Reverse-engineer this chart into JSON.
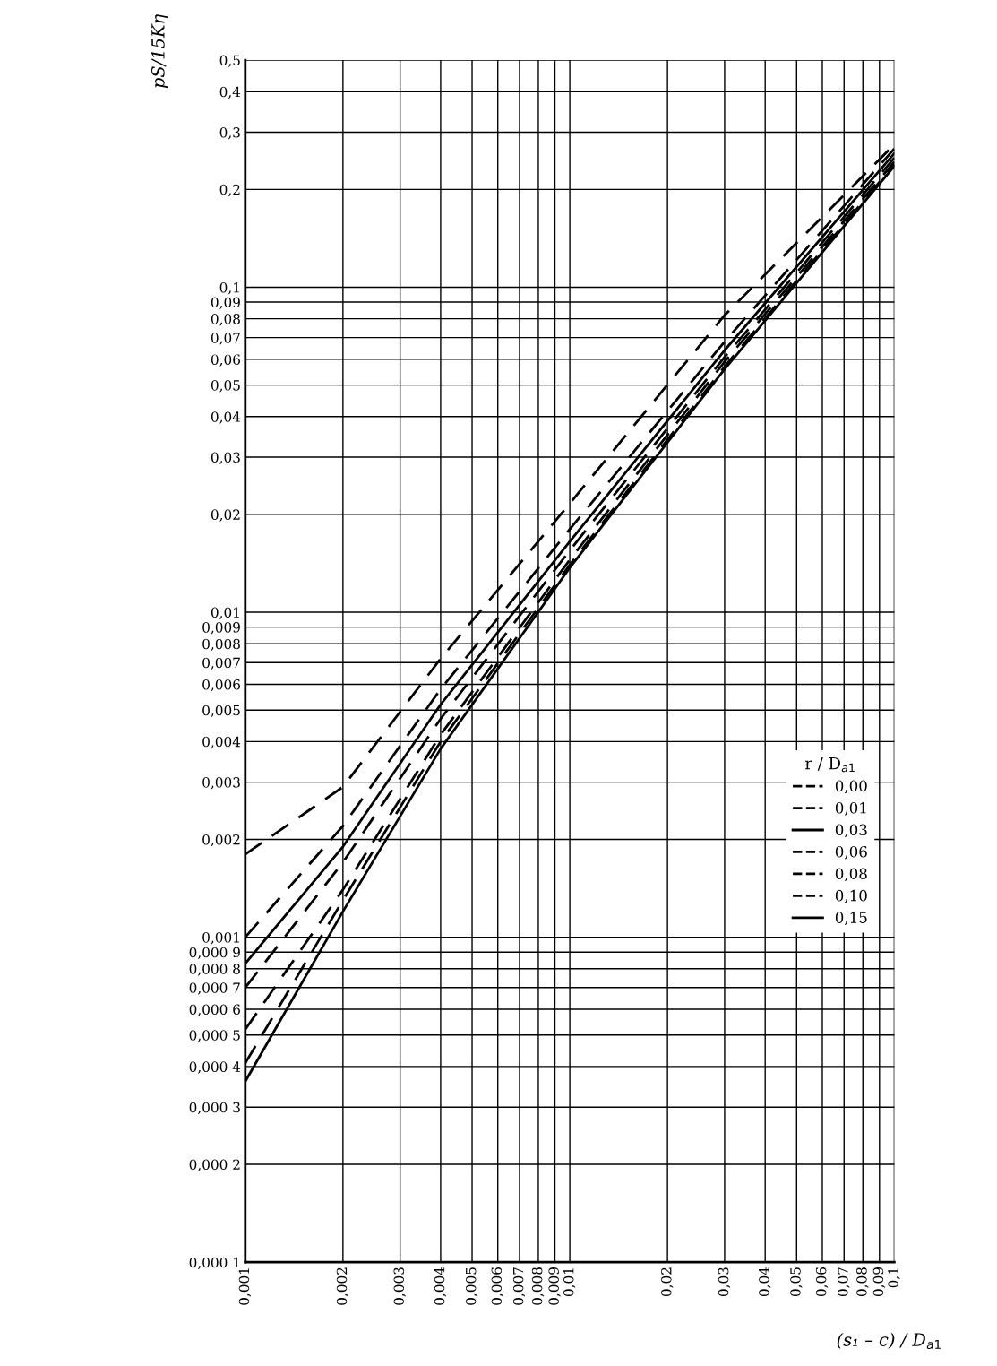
{
  "chart_data": {
    "type": "line",
    "xlabel": "(s₁ – c) / D$_{a1}$",
    "ylabel": "pS/15Kη",
    "legend_title": "r / D$_{a1}$",
    "log": "xy",
    "grid": true,
    "legend": "right",
    "marker": "none",
    "x": [
      0.001,
      0.002,
      0.004,
      0.01,
      0.03,
      0.1
    ],
    "series": [
      {
        "name": "0,00",
        "color": "#000000",
        "line_style": "dashed",
        "values": [
          0.0018,
          0.0029,
          0.0072,
          0.0216,
          0.082,
          0.275
        ]
      },
      {
        "name": "0,01",
        "color": "#000000",
        "line_style": "dashed",
        "values": [
          0.001,
          0.0022,
          0.0058,
          0.018,
          0.068,
          0.267
        ]
      },
      {
        "name": "0,03",
        "color": "#000000",
        "line_style": "solid",
        "values": [
          0.00083,
          0.0019,
          0.0052,
          0.0165,
          0.064,
          0.258
        ]
      },
      {
        "name": "0,06",
        "color": "#000000",
        "line_style": "dashed",
        "values": [
          0.0007,
          0.0017,
          0.0047,
          0.0155,
          0.061,
          0.25
        ]
      },
      {
        "name": "0,08",
        "color": "#000000",
        "line_style": "dashed",
        "values": [
          0.00052,
          0.0014,
          0.0042,
          0.0145,
          0.059,
          0.243
        ]
      },
      {
        "name": "0,10",
        "color": "#000000",
        "line_style": "dashed",
        "values": [
          0.00041,
          0.0013,
          0.004,
          0.014,
          0.057,
          0.239
        ]
      },
      {
        "name": "0,15",
        "color": "#000000",
        "line_style": "solid",
        "values": [
          0.00036,
          0.0012,
          0.0038,
          0.0137,
          0.056,
          0.236
        ]
      }
    ],
    "xlim": [
      0.001,
      0.1
    ],
    "xticks": [
      {
        "value": 0.001,
        "label": "0,001"
      },
      {
        "value": 0.002,
        "label": "0,002"
      },
      {
        "value": 0.003,
        "label": "0,003"
      },
      {
        "value": 0.004,
        "label": "0,004"
      },
      {
        "value": 0.005,
        "label": "0,005"
      },
      {
        "value": 0.006,
        "label": "0,006"
      },
      {
        "value": 0.007,
        "label": "0,007"
      },
      {
        "value": 0.008,
        "label": "0,008"
      },
      {
        "value": 0.009,
        "label": "0,009"
      },
      {
        "value": 0.01,
        "label": "0,01"
      },
      {
        "value": 0.02,
        "label": "0,02"
      },
      {
        "value": 0.03,
        "label": "0,03"
      },
      {
        "value": 0.04,
        "label": "0,04"
      },
      {
        "value": 0.05,
        "label": "0,05"
      },
      {
        "value": 0.06,
        "label": "0,06"
      },
      {
        "value": 0.07,
        "label": "0,07"
      },
      {
        "value": 0.08,
        "label": "0,08"
      },
      {
        "value": 0.09,
        "label": "0,09"
      },
      {
        "value": 0.1,
        "label": "0,1"
      }
    ],
    "ylim": [
      0.0001,
      0.5
    ],
    "yticks": [
      {
        "value": 0.0001,
        "label": "0,000 1"
      },
      {
        "value": 0.0002,
        "label": "0,000 2"
      },
      {
        "value": 0.0003,
        "label": "0,000 3"
      },
      {
        "value": 0.0004,
        "label": "0,000 4"
      },
      {
        "value": 0.0005,
        "label": "0,000 5"
      },
      {
        "value": 0.0006,
        "label": "0,000 6"
      },
      {
        "value": 0.0007,
        "label": "0,000 7"
      },
      {
        "value": 0.0008,
        "label": "0,000 8"
      },
      {
        "value": 0.0009,
        "label": "0,000 9"
      },
      {
        "value": 0.001,
        "label": "0,001"
      },
      {
        "value": 0.002,
        "label": "0,002"
      },
      {
        "value": 0.003,
        "label": "0,003"
      },
      {
        "value": 0.004,
        "label": "0,004"
      },
      {
        "value": 0.005,
        "label": "0,005"
      },
      {
        "value": 0.006,
        "label": "0,006"
      },
      {
        "value": 0.007,
        "label": "0,007"
      },
      {
        "value": 0.008,
        "label": "0,008"
      },
      {
        "value": 0.009,
        "label": "0,009"
      },
      {
        "value": 0.01,
        "label": "0,01"
      },
      {
        "value": 0.02,
        "label": "0,02"
      },
      {
        "value": 0.03,
        "label": "0,03"
      },
      {
        "value": 0.04,
        "label": "0,04"
      },
      {
        "value": 0.05,
        "label": "0,05"
      },
      {
        "value": 0.06,
        "label": "0,06"
      },
      {
        "value": 0.07,
        "label": "0,07"
      },
      {
        "value": 0.08,
        "label": "0,08"
      },
      {
        "value": 0.09,
        "label": "0,09"
      },
      {
        "value": 0.1,
        "label": "0,1"
      },
      {
        "value": 0.2,
        "label": "0,2"
      },
      {
        "value": 0.3,
        "label": "0,3"
      },
      {
        "value": 0.4,
        "label": "0,4"
      },
      {
        "value": 0.5,
        "label": "0,5"
      }
    ]
  }
}
